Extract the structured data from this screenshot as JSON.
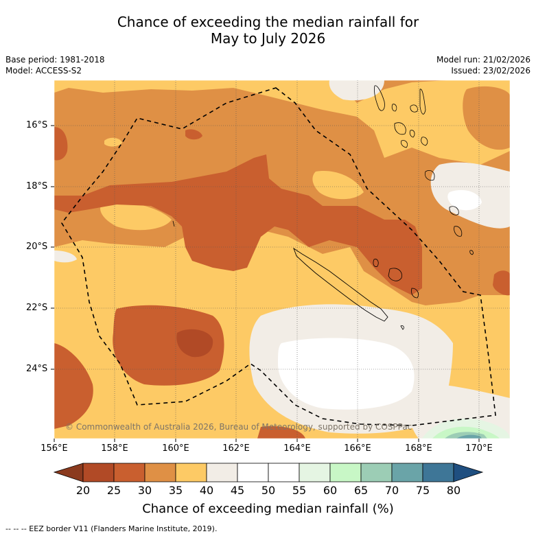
{
  "title_line1": "Chance of exceeding the median rainfall for",
  "title_line2": "May to July 2026",
  "meta_left": {
    "base_period": "Base period: 1981-2018",
    "model": "Model: ACCESS-S2"
  },
  "meta_right": {
    "model_run": "Model run: 21/02/2026",
    "issued": "Issued: 23/02/2026"
  },
  "map": {
    "lat_labels": [
      "16°S",
      "18°S",
      "20°S",
      "22°S",
      "24°S"
    ],
    "lon_labels": [
      "156°E",
      "158°E",
      "160°E",
      "162°E",
      "164°E",
      "166°E",
      "168°E",
      "170°E"
    ],
    "copyright": "© Commonwealth of Australia 2026, Bureau of Meteorology, supported by COSPPac"
  },
  "colorbar": {
    "title": "Chance of exceeding median rainfall (%)",
    "ticks": [
      "20",
      "25",
      "30",
      "35",
      "40",
      "45",
      "50",
      "55",
      "60",
      "65",
      "70",
      "75",
      "80"
    ],
    "colors": {
      "lt20": "#8b3a1e",
      "c20_25": "#b14a26",
      "c25_30": "#c95f2f",
      "c30_35": "#df9045",
      "c35_40": "#fdca65",
      "c40_45": "#f2ede6",
      "c45_50": "#ffffff",
      "c50_55": "#ffffff",
      "c55_60": "#e5f5e3",
      "c60_65": "#c8f7c6",
      "c65_70": "#9ccdb5",
      "c70_75": "#6aa4a8",
      "c75_80": "#3e7697",
      "gt80": "#1f4f80"
    }
  },
  "footnote": "--  --  -- EEZ border V11 (Flanders Marine Institute, 2019)."
}
